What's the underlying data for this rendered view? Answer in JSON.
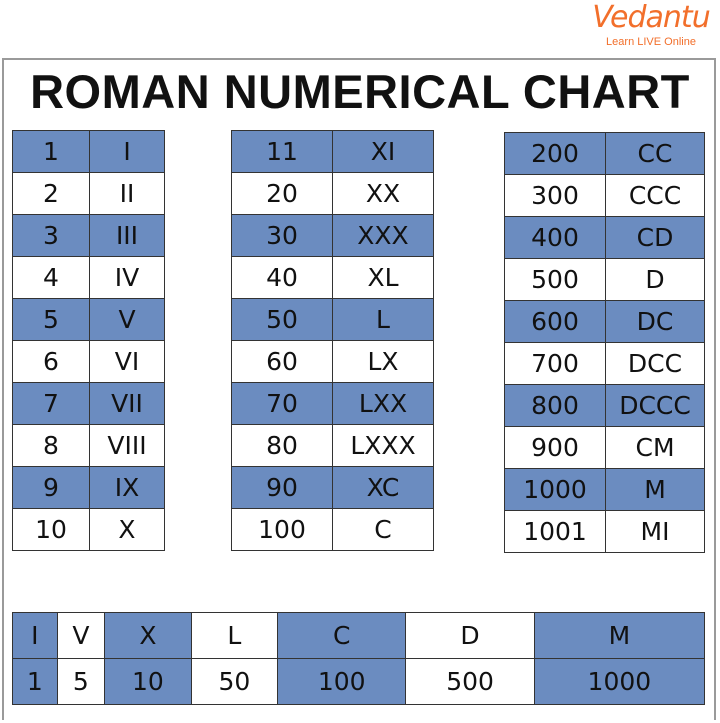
{
  "logo": {
    "brand": "Vedantu",
    "tagline": "Learn LIVE Online"
  },
  "title": "ROMAN NUMERICAL CHART",
  "colors": {
    "accent_blue": "#6b8cc0",
    "logo_orange": "#f26f2b"
  },
  "tables": [
    {
      "rows": [
        [
          "1",
          "I"
        ],
        [
          "2",
          "II"
        ],
        [
          "3",
          "III"
        ],
        [
          "4",
          "IV"
        ],
        [
          "5",
          "V"
        ],
        [
          "6",
          "VI"
        ],
        [
          "7",
          "VII"
        ],
        [
          "8",
          "VIII"
        ],
        [
          "9",
          "IX"
        ],
        [
          "10",
          "X"
        ]
      ]
    },
    {
      "rows": [
        [
          "11",
          "XI"
        ],
        [
          "20",
          "XX"
        ],
        [
          "30",
          "XXX"
        ],
        [
          "40",
          "XL"
        ],
        [
          "50",
          "L"
        ],
        [
          "60",
          "LX"
        ],
        [
          "70",
          "LXX"
        ],
        [
          "80",
          "LXXX"
        ],
        [
          "90",
          "XC"
        ],
        [
          "100",
          "C"
        ]
      ]
    },
    {
      "rows": [
        [
          "200",
          "CC"
        ],
        [
          "300",
          "CCC"
        ],
        [
          "400",
          "CD"
        ],
        [
          "500",
          "D"
        ],
        [
          "600",
          "DC"
        ],
        [
          "700",
          "DCC"
        ],
        [
          "800",
          "DCCC"
        ],
        [
          "900",
          "CM"
        ],
        [
          "1000",
          "M"
        ],
        [
          "1001",
          "MI"
        ]
      ]
    }
  ],
  "summary": {
    "symbols": [
      "I",
      "V",
      "X",
      "L",
      "C",
      "D",
      "M"
    ],
    "values": [
      "1",
      "5",
      "10",
      "50",
      "100",
      "500",
      "1000"
    ]
  }
}
